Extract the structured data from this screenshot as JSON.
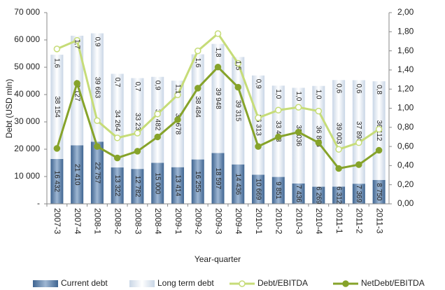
{
  "chart_data": {
    "type": "bar_line",
    "x_label": "Year-quarter",
    "y_label": "Debt (USD mln)",
    "categories": [
      "2007-3",
      "2007-4",
      "2008-1",
      "2008-2",
      "2008-3",
      "2008-4",
      "2009-1",
      "2009-2",
      "2009-3",
      "2009-4",
      "2010-1",
      "2010-2",
      "2010-3",
      "2010-4",
      "2011-1",
      "2011-2",
      "2011-3"
    ],
    "series": [
      {
        "name": "Current debt",
        "type": "bar",
        "color": "#5f82ab",
        "values": [
          16432,
          21410,
          22757,
          13322,
          12782,
          15000,
          13414,
          16255,
          18597,
          14436,
          10669,
          9851,
          7436,
          6269,
          6312,
          7369,
          8750
        ],
        "value_labels": [
          "16 432",
          "21 410",
          "22 757",
          "13 322",
          "12 782",
          "15 000",
          "13 414",
          "16 255",
          "18 597",
          "14 436",
          "10 669",
          "9 851",
          "7 436",
          "6 269",
          "6 312",
          "7 369",
          "8 750"
        ]
      },
      {
        "name": "Long term debt",
        "type": "bar",
        "color": "#dfe7f1",
        "values": [
          38154,
          40127,
          39663,
          34264,
          33238,
          31482,
          31678,
          38484,
          39948,
          39315,
          36313,
          33413,
          35036,
          36893,
          39003,
          37898,
          36112
        ],
        "value_labels": [
          "38 154",
          "40 127",
          "39 663",
          "34 264",
          "33 238",
          "31 482",
          "31 678",
          "38 484",
          "39 948",
          "39 315",
          "36 313",
          "33 413",
          "35 036",
          "36 893",
          "39 003",
          "37 898",
          "36 112"
        ]
      },
      {
        "name": "Debt/EBITDA",
        "type": "line",
        "axis": "y2",
        "color": "#c6dc78",
        "values": [
          1.62,
          1.71,
          0.87,
          0.69,
          0.74,
          0.94,
          1.14,
          1.6,
          1.78,
          1.47,
          0.9,
          0.98,
          1.01,
          0.97,
          0.57,
          0.64,
          0.78
        ],
        "value_labels": [
          "1,6",
          "1,7",
          "0,9",
          "0,7",
          "0,7",
          "0,9",
          "1,1",
          "1,6",
          "1,8",
          "1,5",
          "0,9",
          "1,0",
          "1,0",
          "1,0",
          "0,6",
          "0,6",
          "0,8"
        ]
      },
      {
        "name": "NetDebt/EBITDA",
        "type": "line",
        "axis": "y2",
        "color": "#86a32a",
        "values": [
          0.58,
          1.26,
          0.6,
          0.48,
          0.55,
          0.7,
          0.88,
          1.21,
          1.43,
          1.22,
          0.6,
          0.7,
          0.75,
          0.64,
          0.37,
          0.41,
          0.56
        ]
      }
    ],
    "ylim": [
      0,
      70000
    ],
    "yticks": [
      {
        "value": 0,
        "label": "-"
      },
      {
        "value": 10000,
        "label": "10 000"
      },
      {
        "value": 20000,
        "label": "20 000"
      },
      {
        "value": 30000,
        "label": "30 000"
      },
      {
        "value": 40000,
        "label": "40 000"
      },
      {
        "value": 50000,
        "label": "50 000"
      },
      {
        "value": 60000,
        "label": "60 000"
      },
      {
        "value": 70000,
        "label": "70 000"
      }
    ],
    "y2lim": [
      0,
      2
    ],
    "y2ticks": [
      {
        "value": 0,
        "label": "0,00"
      },
      {
        "value": 0.2,
        "label": "0,20"
      },
      {
        "value": 0.4,
        "label": "0,40"
      },
      {
        "value": 0.6,
        "label": "0,60"
      },
      {
        "value": 0.8,
        "label": "0,80"
      },
      {
        "value": 1,
        "label": "1,00"
      },
      {
        "value": 1.2,
        "label": "1,20"
      },
      {
        "value": 1.4,
        "label": "1,40"
      },
      {
        "value": 1.6,
        "label": "1,60"
      },
      {
        "value": 1.8,
        "label": "1,80"
      },
      {
        "value": 2,
        "label": "2,00"
      }
    ],
    "legend": "bottom"
  }
}
